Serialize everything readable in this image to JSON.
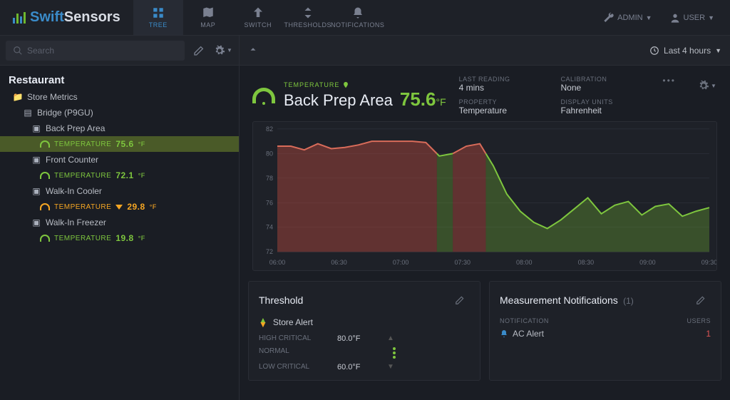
{
  "brand": {
    "part1": "Swift",
    "part2": "Sensors"
  },
  "nav": {
    "tree": "TREE",
    "map": "MAP",
    "switch": "SWITCH",
    "thresholds": "THRESHOLDS",
    "notifications": "NOTIFICATIONS"
  },
  "userMenu": {
    "admin": "ADMIN",
    "user": "USER"
  },
  "search": {
    "placeholder": "Search"
  },
  "timeRange": "Last 4 hours",
  "tree": {
    "root": "Restaurant",
    "folder": "Store Metrics",
    "bridge": "Bridge (P9GU)",
    "nodes": [
      {
        "name": "Back Prep Area",
        "label": "TEMPERATURE",
        "value": "75.6",
        "unit": "°F",
        "status": "green",
        "selected": true
      },
      {
        "name": "Front Counter",
        "label": "TEMPERATURE",
        "value": "72.1",
        "unit": "°F",
        "status": "green"
      },
      {
        "name": "Walk-In Cooler",
        "label": "TEMPERATURE",
        "value": "29.8",
        "unit": "°F",
        "status": "orange",
        "trend": "down"
      },
      {
        "name": "Walk-In Freezer",
        "label": "TEMPERATURE",
        "value": "19.8",
        "unit": "°F",
        "status": "green"
      }
    ]
  },
  "detail": {
    "category": "TEMPERATURE",
    "title": "Back Prep Area",
    "value": "75.6",
    "unit": "°F",
    "meta": {
      "lastReadingLabel": "LAST READING",
      "lastReading": "4 mins",
      "calibrationLabel": "CALIBRATION",
      "calibration": "None",
      "propertyLabel": "PROPERTY",
      "property": "Temperature",
      "unitsLabel": "DISPLAY UNITS",
      "units": "Fahrenheit"
    }
  },
  "chart": {
    "type": "area-line",
    "background": "#1e2128",
    "grid_color": "#353945",
    "axis_color": "#6a707c",
    "line_width": 2,
    "ylim": [
      72,
      82
    ],
    "ytick_step": 2,
    "x_labels": [
      "06:00",
      "06:30",
      "07:00",
      "07:30",
      "08:00",
      "08:30",
      "09:00",
      "09:30"
    ],
    "series": {
      "values": [
        80.6,
        80.6,
        80.3,
        80.8,
        80.4,
        80.5,
        80.7,
        81.0,
        81.0,
        81.0,
        81.0,
        80.9,
        79.8,
        80.0,
        80.6,
        80.8,
        79.0,
        76.7,
        75.3,
        74.4,
        73.9,
        74.6,
        75.5,
        76.4,
        75.1,
        75.8,
        76.1,
        75.0,
        75.7,
        75.9,
        74.9,
        75.3,
        75.6
      ],
      "threshold": 80.0,
      "color_above": "#d96c5a",
      "fill_above": "rgba(180,70,60,0.45)",
      "color_below": "#7ec63e",
      "fill_below": "rgba(110,170,50,0.35)"
    }
  },
  "threshold": {
    "title": "Threshold",
    "alert": "Store Alert",
    "highLabel": "HIGH CRITICAL",
    "high": "80.0°F",
    "normalLabel": "NORMAL",
    "lowLabel": "LOW CRITICAL",
    "low": "60.0°F"
  },
  "notifications": {
    "title": "Measurement Notifications",
    "count": "(1)",
    "col1": "NOTIFICATION",
    "col2": "USERS",
    "rows": [
      {
        "name": "AC Alert",
        "users": "1"
      }
    ]
  }
}
